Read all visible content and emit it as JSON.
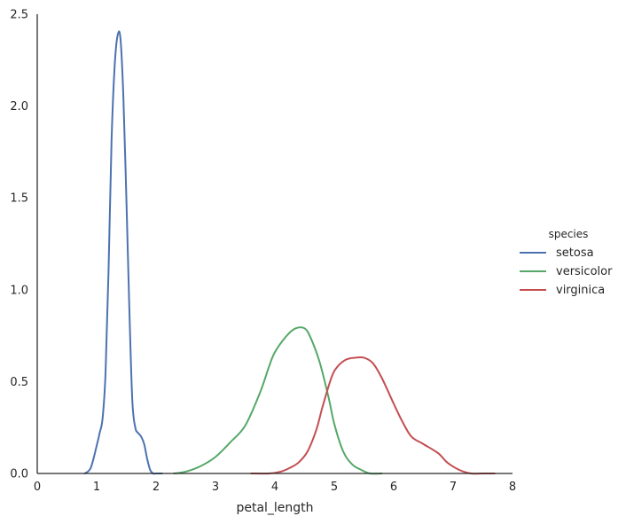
{
  "chart_data": {
    "type": "line",
    "xlabel": "petal_length",
    "ylabel": "",
    "xlim": [
      0,
      8
    ],
    "ylim": [
      0,
      2.5
    ],
    "xticks": [
      "0",
      "1",
      "2",
      "3",
      "4",
      "5",
      "6",
      "7",
      "8"
    ],
    "yticks": [
      "0.0",
      "0.5",
      "1.0",
      "1.5",
      "2.0",
      "2.5"
    ],
    "grid": false,
    "legend": {
      "title": "species",
      "placement": "outside-right"
    },
    "series": [
      {
        "name": "setosa",
        "color": "#4c72b0",
        "x": [
          0.8,
          0.9,
          1.0,
          1.05,
          1.1,
          1.15,
          1.2,
          1.25,
          1.3,
          1.35,
          1.4,
          1.45,
          1.5,
          1.55,
          1.6,
          1.65,
          1.7,
          1.75,
          1.8,
          1.85,
          1.9,
          1.95,
          2.0,
          2.05,
          2.1
        ],
        "y": [
          0.0,
          0.03,
          0.15,
          0.22,
          0.3,
          0.55,
          1.1,
          1.8,
          2.2,
          2.38,
          2.37,
          2.05,
          1.5,
          0.9,
          0.4,
          0.25,
          0.22,
          0.2,
          0.16,
          0.08,
          0.02,
          0.0,
          0.0,
          0.0,
          0.0
        ]
      },
      {
        "name": "versicolor",
        "color": "#55a868",
        "x": [
          2.3,
          2.5,
          2.75,
          3.0,
          3.25,
          3.5,
          3.75,
          3.9,
          4.0,
          4.2,
          4.35,
          4.5,
          4.6,
          4.75,
          4.9,
          5.0,
          5.15,
          5.3,
          5.45,
          5.6,
          5.8
        ],
        "y": [
          0.0,
          0.01,
          0.04,
          0.09,
          0.17,
          0.26,
          0.44,
          0.58,
          0.66,
          0.75,
          0.79,
          0.79,
          0.74,
          0.61,
          0.42,
          0.27,
          0.12,
          0.05,
          0.02,
          0.0,
          0.0
        ]
      },
      {
        "name": "virginica",
        "color": "#c44e52",
        "x": [
          3.6,
          3.9,
          4.1,
          4.25,
          4.4,
          4.55,
          4.7,
          4.8,
          4.95,
          5.05,
          5.2,
          5.35,
          5.5,
          5.65,
          5.8,
          6.0,
          6.15,
          6.3,
          6.5,
          6.75,
          6.9,
          7.1,
          7.3,
          7.5,
          7.7
        ],
        "y": [
          0.0,
          0.0,
          0.01,
          0.03,
          0.06,
          0.12,
          0.24,
          0.36,
          0.52,
          0.58,
          0.62,
          0.63,
          0.63,
          0.6,
          0.52,
          0.38,
          0.28,
          0.2,
          0.16,
          0.11,
          0.06,
          0.02,
          0.0,
          0.0,
          0.0
        ]
      }
    ]
  }
}
